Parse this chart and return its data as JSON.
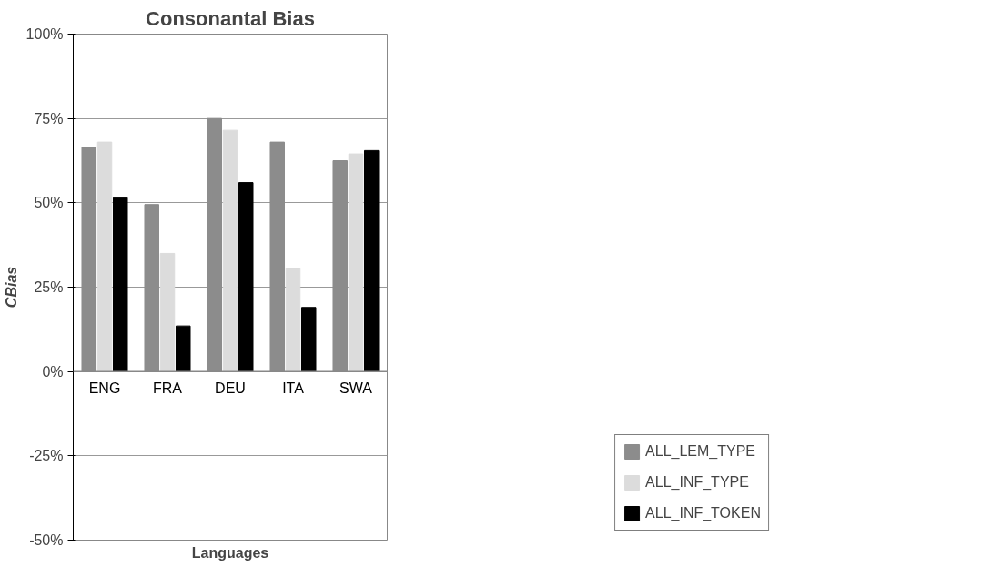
{
  "chart_data": {
    "type": "bar",
    "title": "Consonantal Bias",
    "xlabel": "Languages",
    "ylabel": "CBias",
    "categories": [
      "ENG",
      "FRA",
      "DEU",
      "ITA",
      "SWA"
    ],
    "series": [
      {
        "name": "ALL_LEM_TYPE",
        "color": "#8c8c8c",
        "values": [
          66.5,
          49.5,
          75,
          68,
          62.5
        ]
      },
      {
        "name": "ALL_INF_TYPE",
        "color": "#dcdcdc",
        "values": [
          68,
          35,
          71.5,
          30.5,
          64.5
        ]
      },
      {
        "name": "ALL_INF_TOKEN",
        "color": "#000000",
        "values": [
          51.5,
          13.5,
          56,
          19,
          65.5
        ]
      }
    ],
    "ylim": [
      -50,
      100
    ],
    "yticks": [
      {
        "value": -50,
        "label": "-50%"
      },
      {
        "value": -25,
        "label": "-25%"
      },
      {
        "value": 0,
        "label": "0%"
      },
      {
        "value": 25,
        "label": "25%"
      },
      {
        "value": 50,
        "label": "50%"
      },
      {
        "value": 75,
        "label": "75%"
      },
      {
        "value": 100,
        "label": "100%"
      }
    ],
    "grid": "y",
    "legend": "right"
  }
}
